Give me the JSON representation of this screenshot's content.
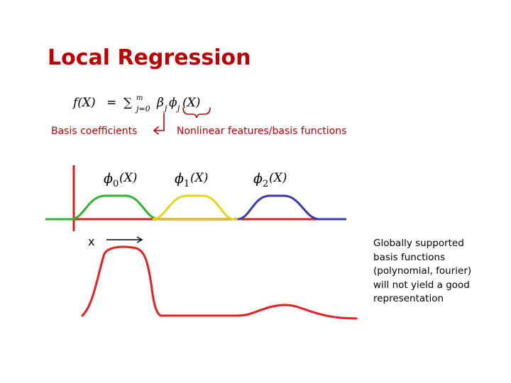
{
  "slide": {
    "title": "Local Regression"
  },
  "formula": {
    "lhs": "f(X)",
    "equals": "=",
    "sum_symbol": "∑",
    "sum_lower": "j=0",
    "sum_upper": "m",
    "beta": "β",
    "beta_sub": "j",
    "phi": "ϕ",
    "phi_sub": "j",
    "arg": "(X)"
  },
  "annotations": {
    "coefficients": "Basis coefficients",
    "features": "Nonlinear features/basis functions",
    "coefficients_color": "#c00000"
  },
  "basis_labels": [
    {
      "symbol": "ϕ",
      "sub": "0",
      "arg": "(X)",
      "color": "#2db52d"
    },
    {
      "symbol": "ϕ",
      "sub": "1",
      "arg": "(X)",
      "color": "#e6d619"
    },
    {
      "symbol": "ϕ",
      "sub": "2",
      "arg": "(X)",
      "color": "#3a3ab0"
    }
  ],
  "x_axis_label": "x",
  "colors": {
    "axis": "#d62020",
    "target_curve": "#ee1c1c"
  },
  "side_note": {
    "lines": [
      "Globally supported",
      "basis functions",
      "(polynomial, fourier)",
      "will not yield a good",
      "representation"
    ]
  }
}
